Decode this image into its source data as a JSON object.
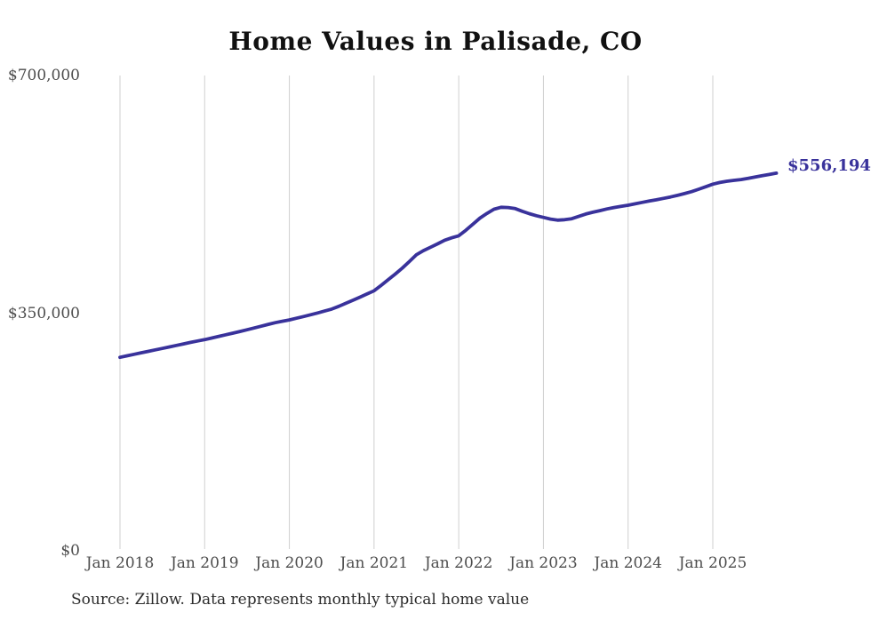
{
  "title": "Home Values in Palisade, CO",
  "source": "Source: Zillow. Data represents monthly typical home value",
  "end_label": "$556,194",
  "colors": {
    "line": "#39329b",
    "grid": "#cfcfcf",
    "title_text": "#111111",
    "tick_text": "#4d4d4d",
    "source_text": "#2b2b2b",
    "background": "#ffffff"
  },
  "chart_data": {
    "type": "line",
    "title": "Home Values in Palisade, CO",
    "series_name": "Monthly typical home value",
    "x_start": "2018-01",
    "x_end": "2025-10",
    "frequency": "monthly",
    "values": [
      285000,
      287200,
      289400,
      291600,
      293800,
      296000,
      298100,
      300300,
      302500,
      304700,
      306900,
      309000,
      311000,
      313400,
      315800,
      318200,
      320600,
      323000,
      325500,
      328100,
      330800,
      333500,
      336000,
      338100,
      340000,
      342500,
      345000,
      347600,
      350300,
      353100,
      356000,
      360100,
      364500,
      369000,
      373600,
      378300,
      383000,
      391000,
      399200,
      407600,
      416300,
      426000,
      436000,
      442100,
      447100,
      452100,
      457400,
      460900,
      464000,
      472100,
      481000,
      490000,
      497000,
      503100,
      506000,
      505600,
      504000,
      500100,
      496600,
      493500,
      491000,
      488500,
      487000,
      487600,
      489100,
      492500,
      496000,
      498600,
      501000,
      503500,
      505600,
      507300,
      509000,
      511000,
      513100,
      515100,
      517000,
      519000,
      521100,
      523500,
      526100,
      529000,
      532500,
      536200,
      540000,
      542500,
      544300,
      545600,
      546800,
      548500,
      550500,
      552500,
      554200,
      556194
    ],
    "last_value": 556194,
    "annotation": "$556,194",
    "x_tick_labels": [
      "Jan 2018",
      "Jan 2019",
      "Jan 2020",
      "Jan 2021",
      "Jan 2022",
      "Jan 2023",
      "Jan 2024",
      "Jan 2025"
    ],
    "y_tick_labels": [
      "$0",
      "$350,000",
      "$700,000"
    ],
    "y_tick_values": [
      0,
      350000,
      700000
    ],
    "ylim": [
      0,
      700000
    ],
    "xlabel": "",
    "ylabel": "",
    "grid": "vertical-only",
    "legend": "none"
  }
}
